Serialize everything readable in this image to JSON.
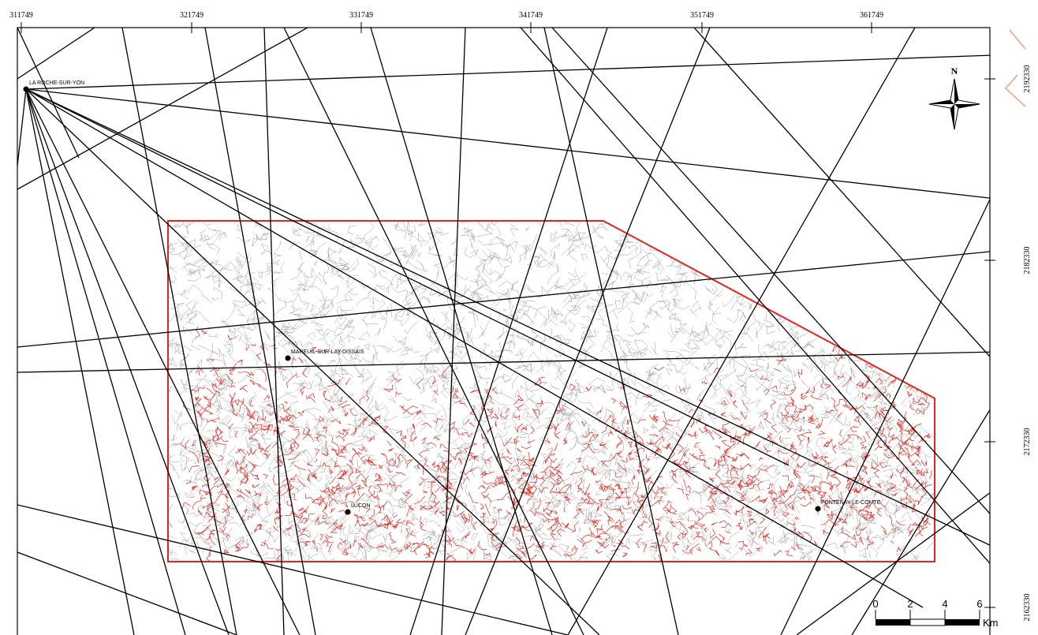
{
  "top_coords": [
    "311749",
    "321749",
    "331749",
    "341749",
    "351749",
    "361749"
  ],
  "right_coords": [
    "2192330",
    "2182330",
    "2172330",
    "2162330"
  ],
  "places": [
    {
      "label": "LA ROCHE-SUR-YON"
    },
    {
      "label": "MAREUIL-SUR-LAY-DISSAIS"
    },
    {
      "label": "LUCON"
    },
    {
      "label": "FONTENAY-LE-COMTE"
    }
  ],
  "north": "N",
  "scale": {
    "labels": [
      "0",
      "2",
      "4",
      "6"
    ],
    "unit": "Km"
  }
}
